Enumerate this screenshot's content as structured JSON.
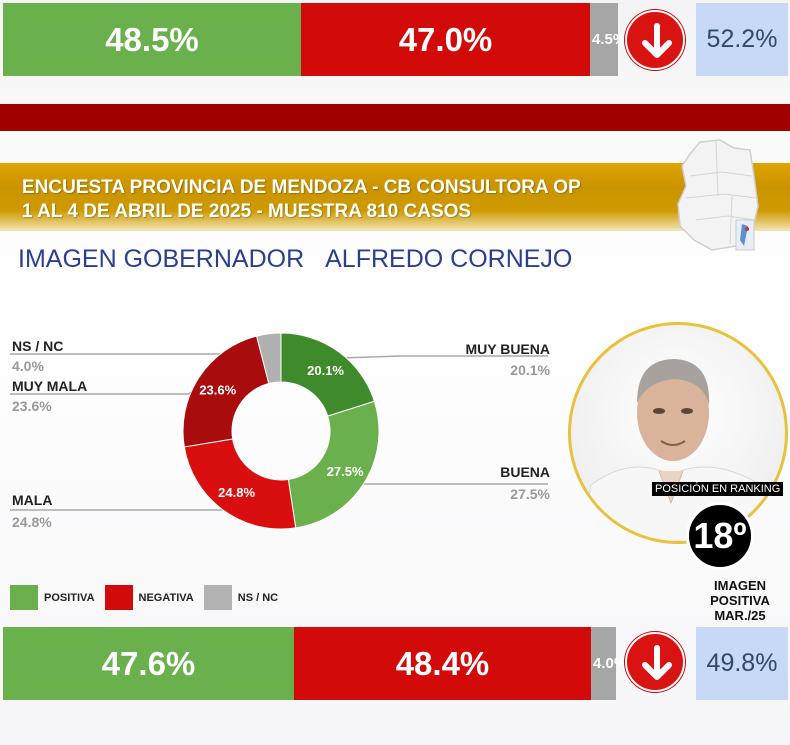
{
  "top_bar": {
    "positive": "48.5%",
    "negative": "47.0%",
    "nsnc": "4.5%",
    "previous": "52.2%",
    "values": {
      "positive": 48.5,
      "negative": 47.0,
      "nsnc": 4.5
    }
  },
  "header": {
    "line1": "ENCUESTA PROVINCIA DE MENDOZA - CB CONSULTORA OP",
    "line2": "1 AL 4 DE ABRIL DE 2025 - MUESTRA 810 CASOS"
  },
  "subtitle": {
    "part1": "IMAGEN GOBERNADOR",
    "part2": "ALFREDO CORNEJO"
  },
  "chart_data": {
    "type": "pie",
    "categories": [
      "MUY BUENA",
      "BUENA",
      "MALA",
      "MUY MALA",
      "NS / NC"
    ],
    "values": [
      20.1,
      27.5,
      24.8,
      23.6,
      4.0
    ],
    "slice_labels": [
      "20.1%",
      "27.5%",
      "24.8%",
      "23.6%",
      "4.0%"
    ],
    "colors": [
      "#3f8a2a",
      "#6ab04c",
      "#d90f0f",
      "#a80c0c",
      "#b0b0b0"
    ]
  },
  "legend": {
    "positive": "POSITIVA",
    "negative": "NEGATIVA",
    "nsnc": "NS / NC",
    "colors": {
      "positive": "#6ab04c",
      "negative": "#d20a0a",
      "nsnc": "#b3b3b3"
    }
  },
  "ranking": {
    "label": "POSICIÓN EN RANKING",
    "position": "18º"
  },
  "previous_caption": {
    "line1": "IMAGEN",
    "line2": "POSITIVA",
    "line3": "MAR./25"
  },
  "bottom_bar": {
    "positive": "47.6%",
    "negative": "48.4%",
    "nsnc": "4.0%",
    "previous": "49.8%",
    "values": {
      "positive": 47.6,
      "negative": 48.4,
      "nsnc": 4.0
    }
  },
  "icons": {
    "trend": "arrow-down-icon",
    "map": "mendoza-map-icon",
    "photo": "governor-portrait"
  }
}
